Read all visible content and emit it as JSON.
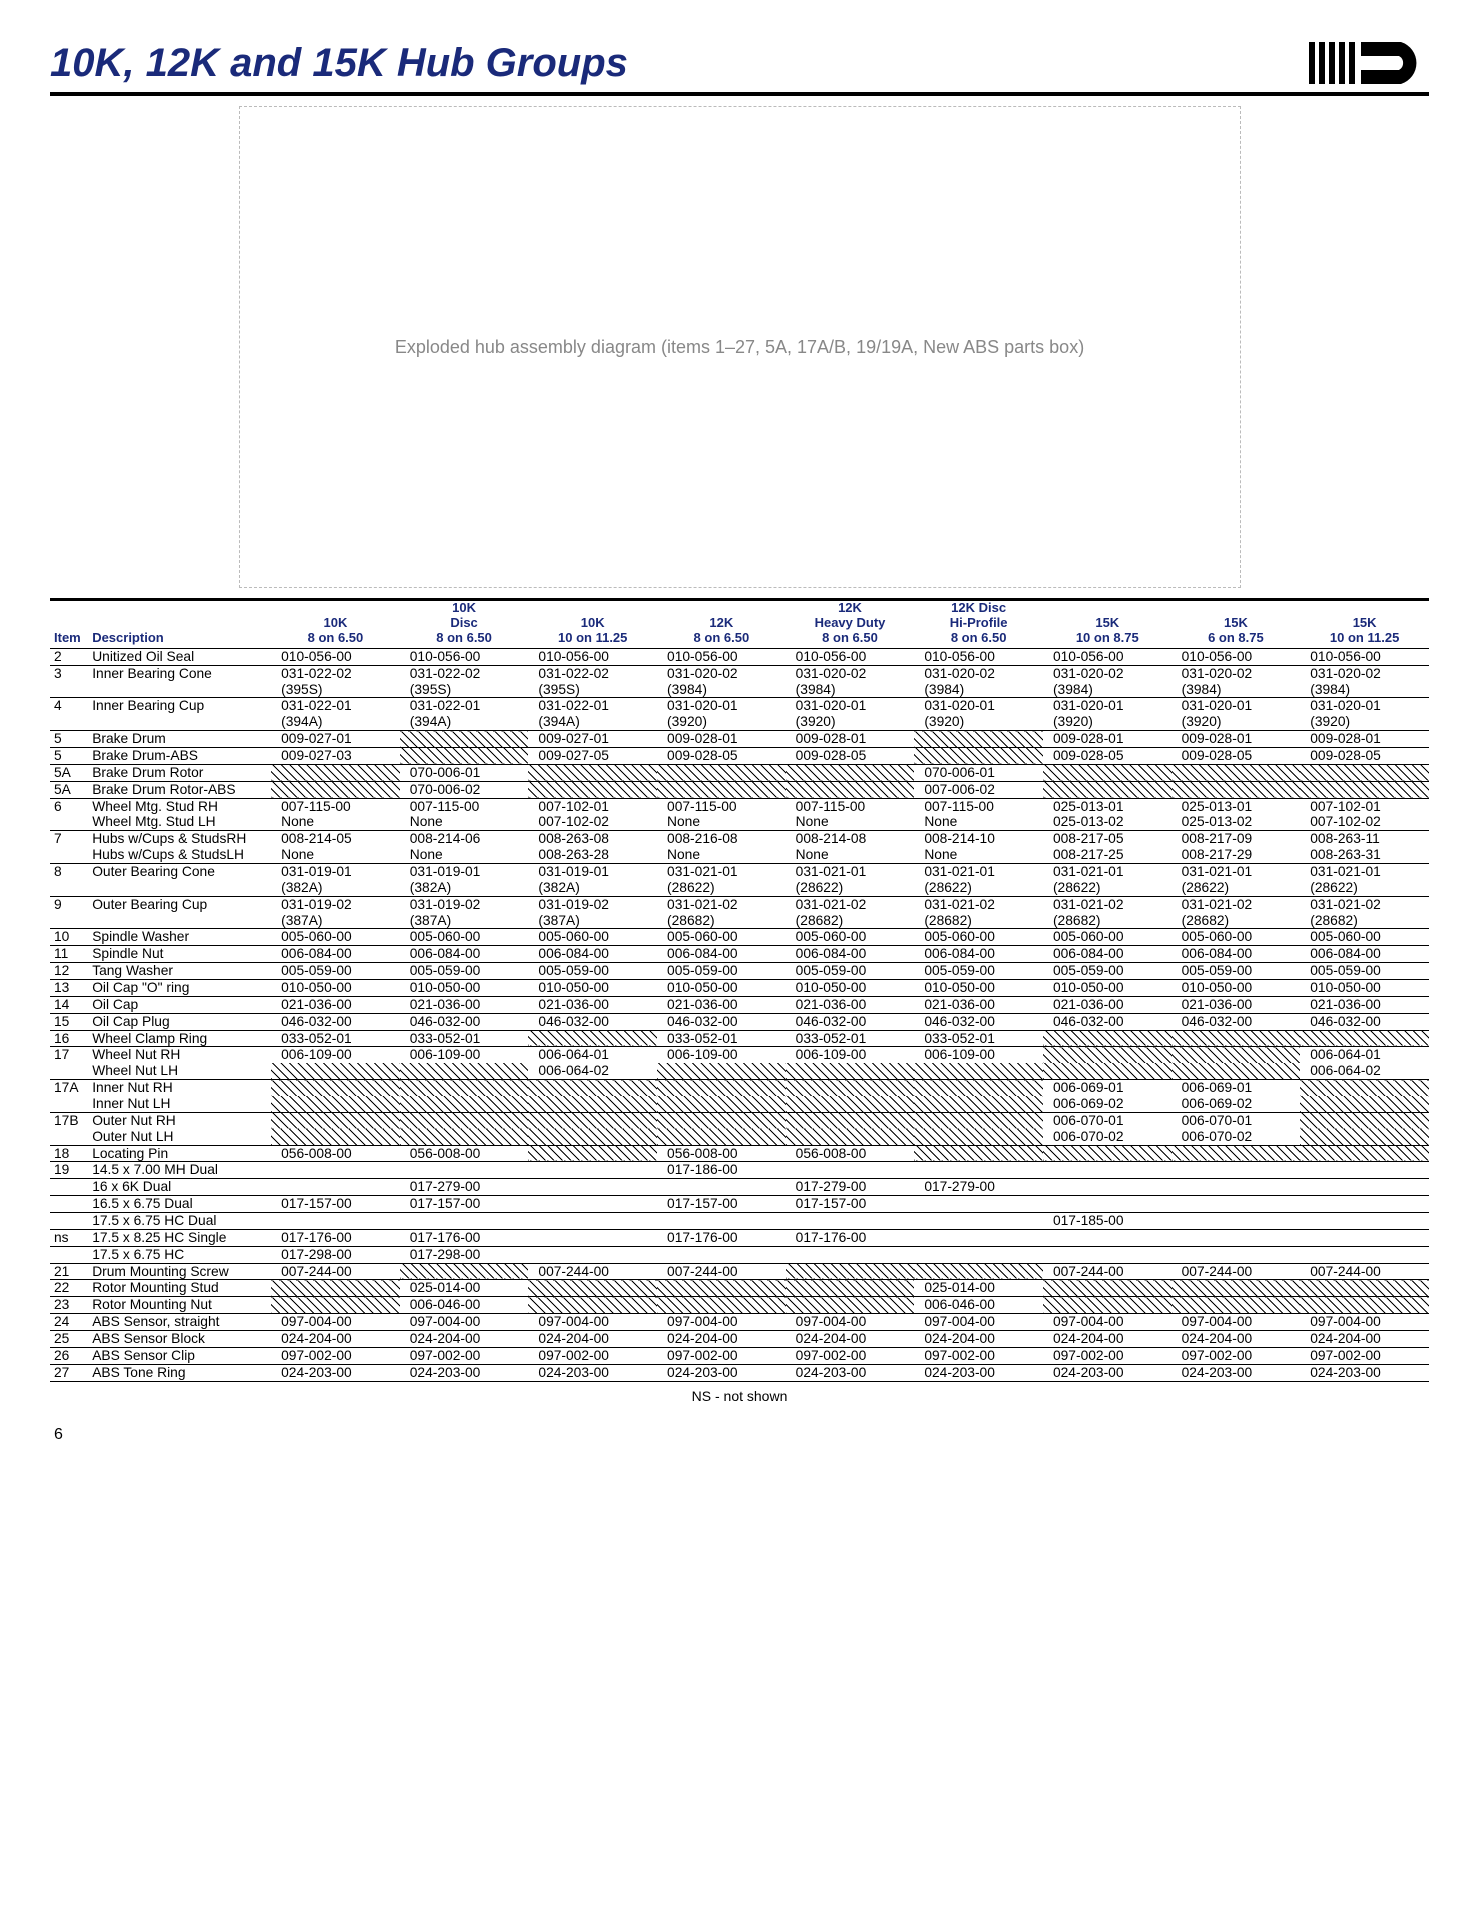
{
  "page": {
    "title": "10K, 12K and 15K Hub Groups",
    "footnote": "NS - not shown",
    "page_number": "6",
    "diagram_note": "Exploded hub assembly diagram\n(items 1–27, 5A, 17A/B, 19/19A, New ABS parts box)"
  },
  "header_labels": {
    "item": "Item",
    "description": "Description"
  },
  "columns": [
    {
      "top": "",
      "mid": "10K",
      "bot": "8 on 6.50"
    },
    {
      "top": "10K",
      "mid": "Disc",
      "bot": "8 on 6.50"
    },
    {
      "top": "",
      "mid": "10K",
      "bot": "10 on 11.25"
    },
    {
      "top": "",
      "mid": "12K",
      "bot": "8 on 6.50"
    },
    {
      "top": "12K",
      "mid": "Heavy Duty",
      "bot": "8 on 6.50"
    },
    {
      "top": "12K Disc",
      "mid": "Hi-Profile",
      "bot": "8 on 6.50"
    },
    {
      "top": "",
      "mid": "15K",
      "bot": "10 on 8.75"
    },
    {
      "top": "",
      "mid": "15K",
      "bot": "6 on 8.75"
    },
    {
      "top": "",
      "mid": "15K",
      "bot": "10 on 11.25"
    }
  ],
  "rows": [
    {
      "sep": true,
      "item": "2",
      "desc": "Unitized Oil Seal",
      "v": [
        "010-056-00",
        "010-056-00",
        "010-056-00",
        "010-056-00",
        "010-056-00",
        "010-056-00",
        "010-056-00",
        "010-056-00",
        "010-056-00"
      ]
    },
    {
      "sep": true,
      "item": "3",
      "desc": "Inner Bearing Cone",
      "v": [
        "031-022-02",
        "031-022-02",
        "031-022-02",
        "031-020-02",
        "031-020-02",
        "031-020-02",
        "031-020-02",
        "031-020-02",
        "031-020-02"
      ]
    },
    {
      "item": "",
      "desc": "",
      "v": [
        "(395S)",
        "(395S)",
        "(395S)",
        "(3984)",
        "(3984)",
        "(3984)",
        "(3984)",
        "(3984)",
        "(3984)"
      ]
    },
    {
      "sep": true,
      "item": "4",
      "desc": "Inner Bearing Cup",
      "v": [
        "031-022-01",
        "031-022-01",
        "031-022-01",
        "031-020-01",
        "031-020-01",
        "031-020-01",
        "031-020-01",
        "031-020-01",
        "031-020-01"
      ]
    },
    {
      "item": "",
      "desc": "",
      "v": [
        "(394A)",
        "(394A)",
        "(394A)",
        "(3920)",
        "(3920)",
        "(3920)",
        "(3920)",
        "(3920)",
        "(3920)"
      ]
    },
    {
      "sep": true,
      "item": "5",
      "desc": "Brake Drum",
      "v": [
        "009-027-01",
        "H",
        "009-027-01",
        "009-028-01",
        "009-028-01",
        "H",
        "009-028-01",
        "009-028-01",
        "009-028-01"
      ]
    },
    {
      "sep": true,
      "item": "5",
      "desc": "Brake Drum-ABS",
      "v": [
        "009-027-03",
        "H",
        "009-027-05",
        "009-028-05",
        "009-028-05",
        "H",
        "009-028-05",
        "009-028-05",
        "009-028-05"
      ]
    },
    {
      "sep": true,
      "item": "5A",
      "desc": "Brake Drum Rotor",
      "v": [
        "H",
        "070-006-01",
        "H",
        "H",
        "H",
        "070-006-01",
        "H",
        "H",
        "H"
      ]
    },
    {
      "sep": true,
      "item": "5A",
      "desc": "Brake Drum Rotor-ABS",
      "v": [
        "H",
        "070-006-02",
        "H",
        "H",
        "H",
        "007-006-02",
        "H",
        "H",
        "H"
      ]
    },
    {
      "sep": true,
      "item": "6",
      "desc": "Wheel Mtg. Stud RH",
      "v": [
        "007-115-00",
        "007-115-00",
        "007-102-01",
        "007-115-00",
        "007-115-00",
        "007-115-00",
        "025-013-01",
        "025-013-01",
        "007-102-01"
      ]
    },
    {
      "item": "",
      "desc": "Wheel Mtg. Stud LH",
      "v": [
        "None",
        "None",
        "007-102-02",
        "None",
        "None",
        "None",
        "025-013-02",
        "025-013-02",
        "007-102-02"
      ]
    },
    {
      "sep": true,
      "item": "7",
      "desc": "Hubs w/Cups & StudsRH",
      "v": [
        "008-214-05",
        "008-214-06",
        "008-263-08",
        "008-216-08",
        "008-214-08",
        "008-214-10",
        "008-217-05",
        "008-217-09",
        "008-263-11"
      ]
    },
    {
      "item": "",
      "desc": "Hubs w/Cups & StudsLH",
      "v": [
        "None",
        "None",
        "008-263-28",
        "None",
        "None",
        "None",
        "008-217-25",
        "008-217-29",
        "008-263-31"
      ]
    },
    {
      "sep": true,
      "item": "8",
      "desc": "Outer Bearing Cone",
      "v": [
        "031-019-01",
        "031-019-01",
        "031-019-01",
        "031-021-01",
        "031-021-01",
        "031-021-01",
        "031-021-01",
        "031-021-01",
        "031-021-01"
      ]
    },
    {
      "item": "",
      "desc": "",
      "v": [
        "(382A)",
        "(382A)",
        "(382A)",
        "(28622)",
        "(28622)",
        "(28622)",
        "(28622)",
        "(28622)",
        "(28622)"
      ]
    },
    {
      "sep": true,
      "item": "9",
      "desc": "Outer Bearing Cup",
      "v": [
        "031-019-02",
        "031-019-02",
        "031-019-02",
        "031-021-02",
        "031-021-02",
        "031-021-02",
        "031-021-02",
        "031-021-02",
        "031-021-02"
      ]
    },
    {
      "item": "",
      "desc": "",
      "v": [
        "(387A)",
        "(387A)",
        "(387A)",
        "(28682)",
        "(28682)",
        "(28682)",
        "(28682)",
        "(28682)",
        "(28682)"
      ]
    },
    {
      "sep": true,
      "item": "10",
      "desc": "Spindle Washer",
      "v": [
        "005-060-00",
        "005-060-00",
        "005-060-00",
        "005-060-00",
        "005-060-00",
        "005-060-00",
        "005-060-00",
        "005-060-00",
        "005-060-00"
      ]
    },
    {
      "sep": true,
      "item": "11",
      "desc": "Spindle Nut",
      "v": [
        "006-084-00",
        "006-084-00",
        "006-084-00",
        "006-084-00",
        "006-084-00",
        "006-084-00",
        "006-084-00",
        "006-084-00",
        "006-084-00"
      ]
    },
    {
      "sep": true,
      "item": "12",
      "desc": "Tang Washer",
      "v": [
        "005-059-00",
        "005-059-00",
        "005-059-00",
        "005-059-00",
        "005-059-00",
        "005-059-00",
        "005-059-00",
        "005-059-00",
        "005-059-00"
      ]
    },
    {
      "sep": true,
      "item": "13",
      "desc": "Oil Cap \"O\" ring",
      "v": [
        "010-050-00",
        "010-050-00",
        "010-050-00",
        "010-050-00",
        "010-050-00",
        "010-050-00",
        "010-050-00",
        "010-050-00",
        "010-050-00"
      ]
    },
    {
      "sep": true,
      "item": "14",
      "desc": "Oil Cap",
      "v": [
        "021-036-00",
        "021-036-00",
        "021-036-00",
        "021-036-00",
        "021-036-00",
        "021-036-00",
        "021-036-00",
        "021-036-00",
        "021-036-00"
      ]
    },
    {
      "sep": true,
      "item": "15",
      "desc": "Oil Cap Plug",
      "v": [
        "046-032-00",
        "046-032-00",
        "046-032-00",
        "046-032-00",
        "046-032-00",
        "046-032-00",
        "046-032-00",
        "046-032-00",
        "046-032-00"
      ]
    },
    {
      "sep": true,
      "item": "16",
      "desc": "Wheel Clamp Ring",
      "v": [
        "033-052-01",
        "033-052-01",
        "H",
        "033-052-01",
        "033-052-01",
        "033-052-01",
        "H",
        "H",
        "H"
      ]
    },
    {
      "sep": true,
      "item": "17",
      "desc": "Wheel Nut RH",
      "v": [
        "006-109-00",
        "006-109-00",
        "006-064-01",
        "006-109-00",
        "006-109-00",
        "006-109-00",
        "H",
        "H",
        "006-064-01"
      ]
    },
    {
      "item": "",
      "desc": "Wheel Nut LH",
      "v": [
        "H",
        "H",
        "006-064-02",
        "H",
        "H",
        "H",
        "H",
        "H",
        "006-064-02"
      ]
    },
    {
      "sep": true,
      "item": "17A",
      "desc": "Inner Nut RH",
      "v": [
        "H",
        "H",
        "H",
        "H",
        "H",
        "H",
        "006-069-01",
        "006-069-01",
        "H"
      ]
    },
    {
      "item": "",
      "desc": "Inner Nut LH",
      "v": [
        "H",
        "H",
        "H",
        "H",
        "H",
        "H",
        "006-069-02",
        "006-069-02",
        "H"
      ]
    },
    {
      "sep": true,
      "item": "17B",
      "desc": "Outer Nut RH",
      "v": [
        "H",
        "H",
        "H",
        "H",
        "H",
        "H",
        "006-070-01",
        "006-070-01",
        "H"
      ]
    },
    {
      "item": "",
      "desc": "Outer Nut LH",
      "v": [
        "H",
        "H",
        "H",
        "H",
        "H",
        "H",
        "006-070-02",
        "006-070-02",
        "H"
      ]
    },
    {
      "sep": true,
      "item": "18",
      "desc": "Locating Pin",
      "v": [
        "056-008-00",
        "056-008-00",
        "H",
        "056-008-00",
        "056-008-00",
        "H",
        "H",
        "H",
        "H"
      ]
    },
    {
      "sep": true,
      "item": "19",
      "desc": "14.5 x 7.00 MH Dual",
      "v": [
        "",
        "",
        "",
        "017-186-00",
        "",
        "",
        "",
        "",
        ""
      ]
    },
    {
      "sep": true,
      "item": "",
      "desc": "16 x 6K Dual",
      "v": [
        "",
        "017-279-00",
        "",
        "",
        "017-279-00",
        "017-279-00",
        "",
        "",
        ""
      ]
    },
    {
      "sep": true,
      "item": "",
      "desc": "16.5 x 6.75 Dual",
      "v": [
        "017-157-00",
        "017-157-00",
        "",
        "017-157-00",
        "017-157-00",
        "",
        "",
        "",
        ""
      ]
    },
    {
      "sep": true,
      "item": "",
      "desc": "17.5 x 6.75 HC Dual",
      "v": [
        "",
        "",
        "",
        "",
        "",
        "",
        "017-185-00",
        "",
        ""
      ]
    },
    {
      "sep": true,
      "item": "ns",
      "desc": "17.5 x 8.25 HC Single",
      "v": [
        "017-176-00",
        "017-176-00",
        "",
        "017-176-00",
        "017-176-00",
        "",
        "",
        "",
        ""
      ]
    },
    {
      "sep": true,
      "item": "",
      "desc": "17.5 x 6.75 HC",
      "v": [
        "017-298-00",
        "017-298-00",
        "",
        "",
        "",
        "",
        "",
        "",
        ""
      ]
    },
    {
      "sep": true,
      "item": "21",
      "desc": "Drum Mounting Screw",
      "v": [
        "007-244-00",
        "H",
        "007-244-00",
        "007-244-00",
        "H",
        "H",
        "007-244-00",
        "007-244-00",
        "007-244-00"
      ]
    },
    {
      "sep": true,
      "item": "22",
      "desc": "Rotor Mounting Stud",
      "v": [
        "H",
        "025-014-00",
        "H",
        "H",
        "H",
        "025-014-00",
        "H",
        "H",
        "H"
      ]
    },
    {
      "sep": true,
      "item": "23",
      "desc": "Rotor Mounting Nut",
      "v": [
        "H",
        "006-046-00",
        "H",
        "H",
        "H",
        "006-046-00",
        "H",
        "H",
        "H"
      ]
    },
    {
      "sep": true,
      "item": "24",
      "desc": "ABS Sensor, straight",
      "v": [
        "097-004-00",
        "097-004-00",
        "097-004-00",
        "097-004-00",
        "097-004-00",
        "097-004-00",
        "097-004-00",
        "097-004-00",
        "097-004-00"
      ]
    },
    {
      "sep": true,
      "item": "25",
      "desc": "ABS Sensor Block",
      "v": [
        "024-204-00",
        "024-204-00",
        "024-204-00",
        "024-204-00",
        "024-204-00",
        "024-204-00",
        "024-204-00",
        "024-204-00",
        "024-204-00"
      ]
    },
    {
      "sep": true,
      "item": "26",
      "desc": "ABS Sensor Clip",
      "v": [
        "097-002-00",
        "097-002-00",
        "097-002-00",
        "097-002-00",
        "097-002-00",
        "097-002-00",
        "097-002-00",
        "097-002-00",
        "097-002-00"
      ]
    },
    {
      "sep": true,
      "item": "27",
      "desc": "ABS Tone Ring",
      "v": [
        "024-203-00",
        "024-203-00",
        "024-203-00",
        "024-203-00",
        "024-203-00",
        "024-203-00",
        "024-203-00",
        "024-203-00",
        "024-203-00"
      ]
    }
  ],
  "bottom_rule": true
}
